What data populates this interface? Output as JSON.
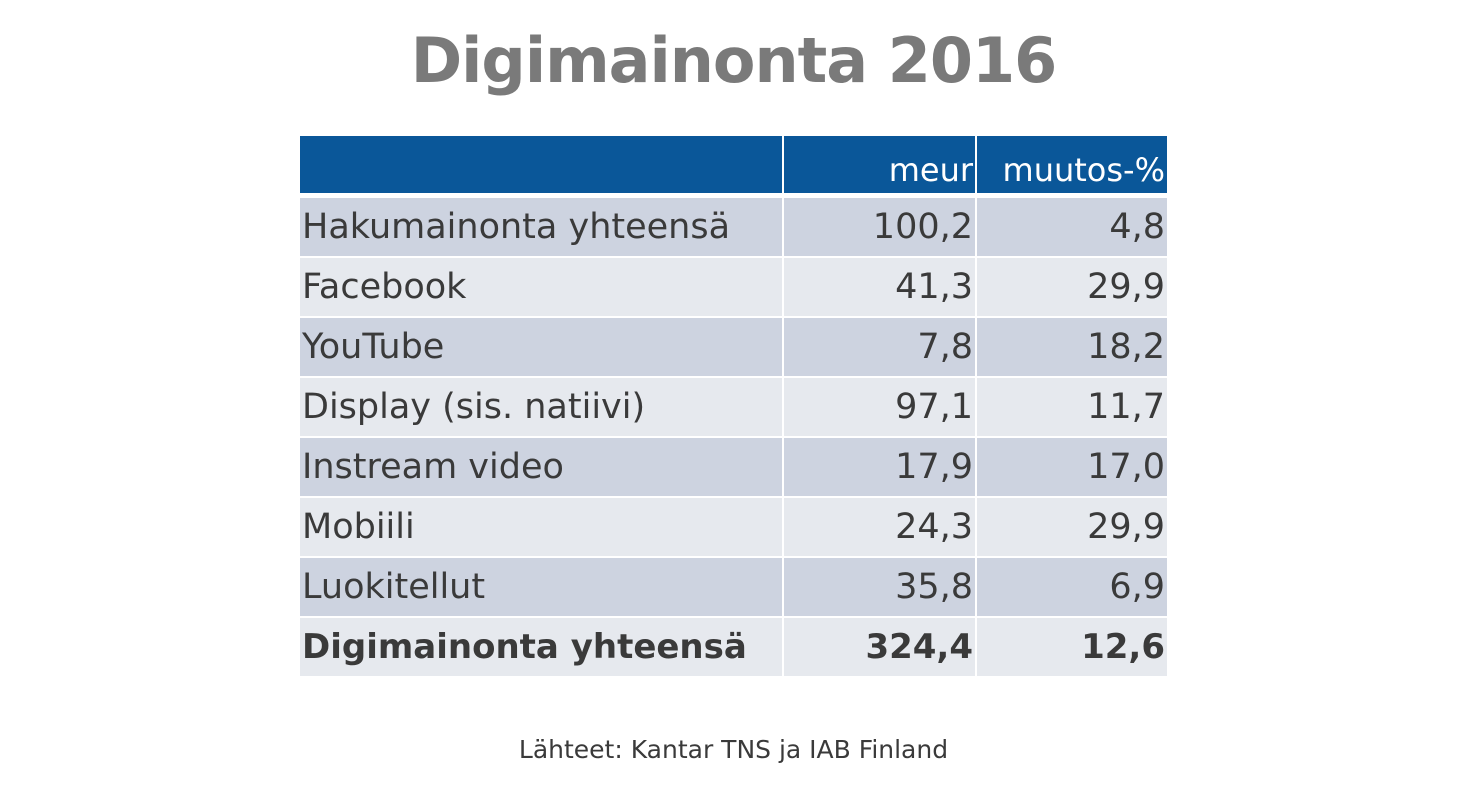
{
  "title": "Digimainonta 2016",
  "source": "Lähteet: Kantar TNS ja IAB Finland",
  "colors": {
    "header_bg": "#0a5799",
    "row_dark": "#cdd3e0",
    "row_light": "#e6e9ee",
    "title": "#7a7a7a"
  },
  "chart_data": {
    "type": "table",
    "title": "Digimainonta 2016",
    "columns": [
      "",
      "meur",
      "muutos-%"
    ],
    "rows": [
      {
        "label": "Hakumainonta yhteensä",
        "meur": "100,2",
        "change": "4,8"
      },
      {
        "label": "Facebook",
        "meur": "41,3",
        "change": "29,9"
      },
      {
        "label": "YouTube",
        "meur": "7,8",
        "change": "18,2"
      },
      {
        "label": "Display (sis. natiivi)",
        "meur": "97,1",
        "change": "11,7"
      },
      {
        "label": "Instream video",
        "meur": "17,9",
        "change": "17,0"
      },
      {
        "label": "Mobiili",
        "meur": "24,3",
        "change": "29,9"
      },
      {
        "label": "Luokitellut",
        "meur": "35,8",
        "change": "6,9"
      }
    ],
    "total": {
      "label": "Digimainonta yhteensä",
      "meur": "324,4",
      "change": "12,6"
    }
  }
}
